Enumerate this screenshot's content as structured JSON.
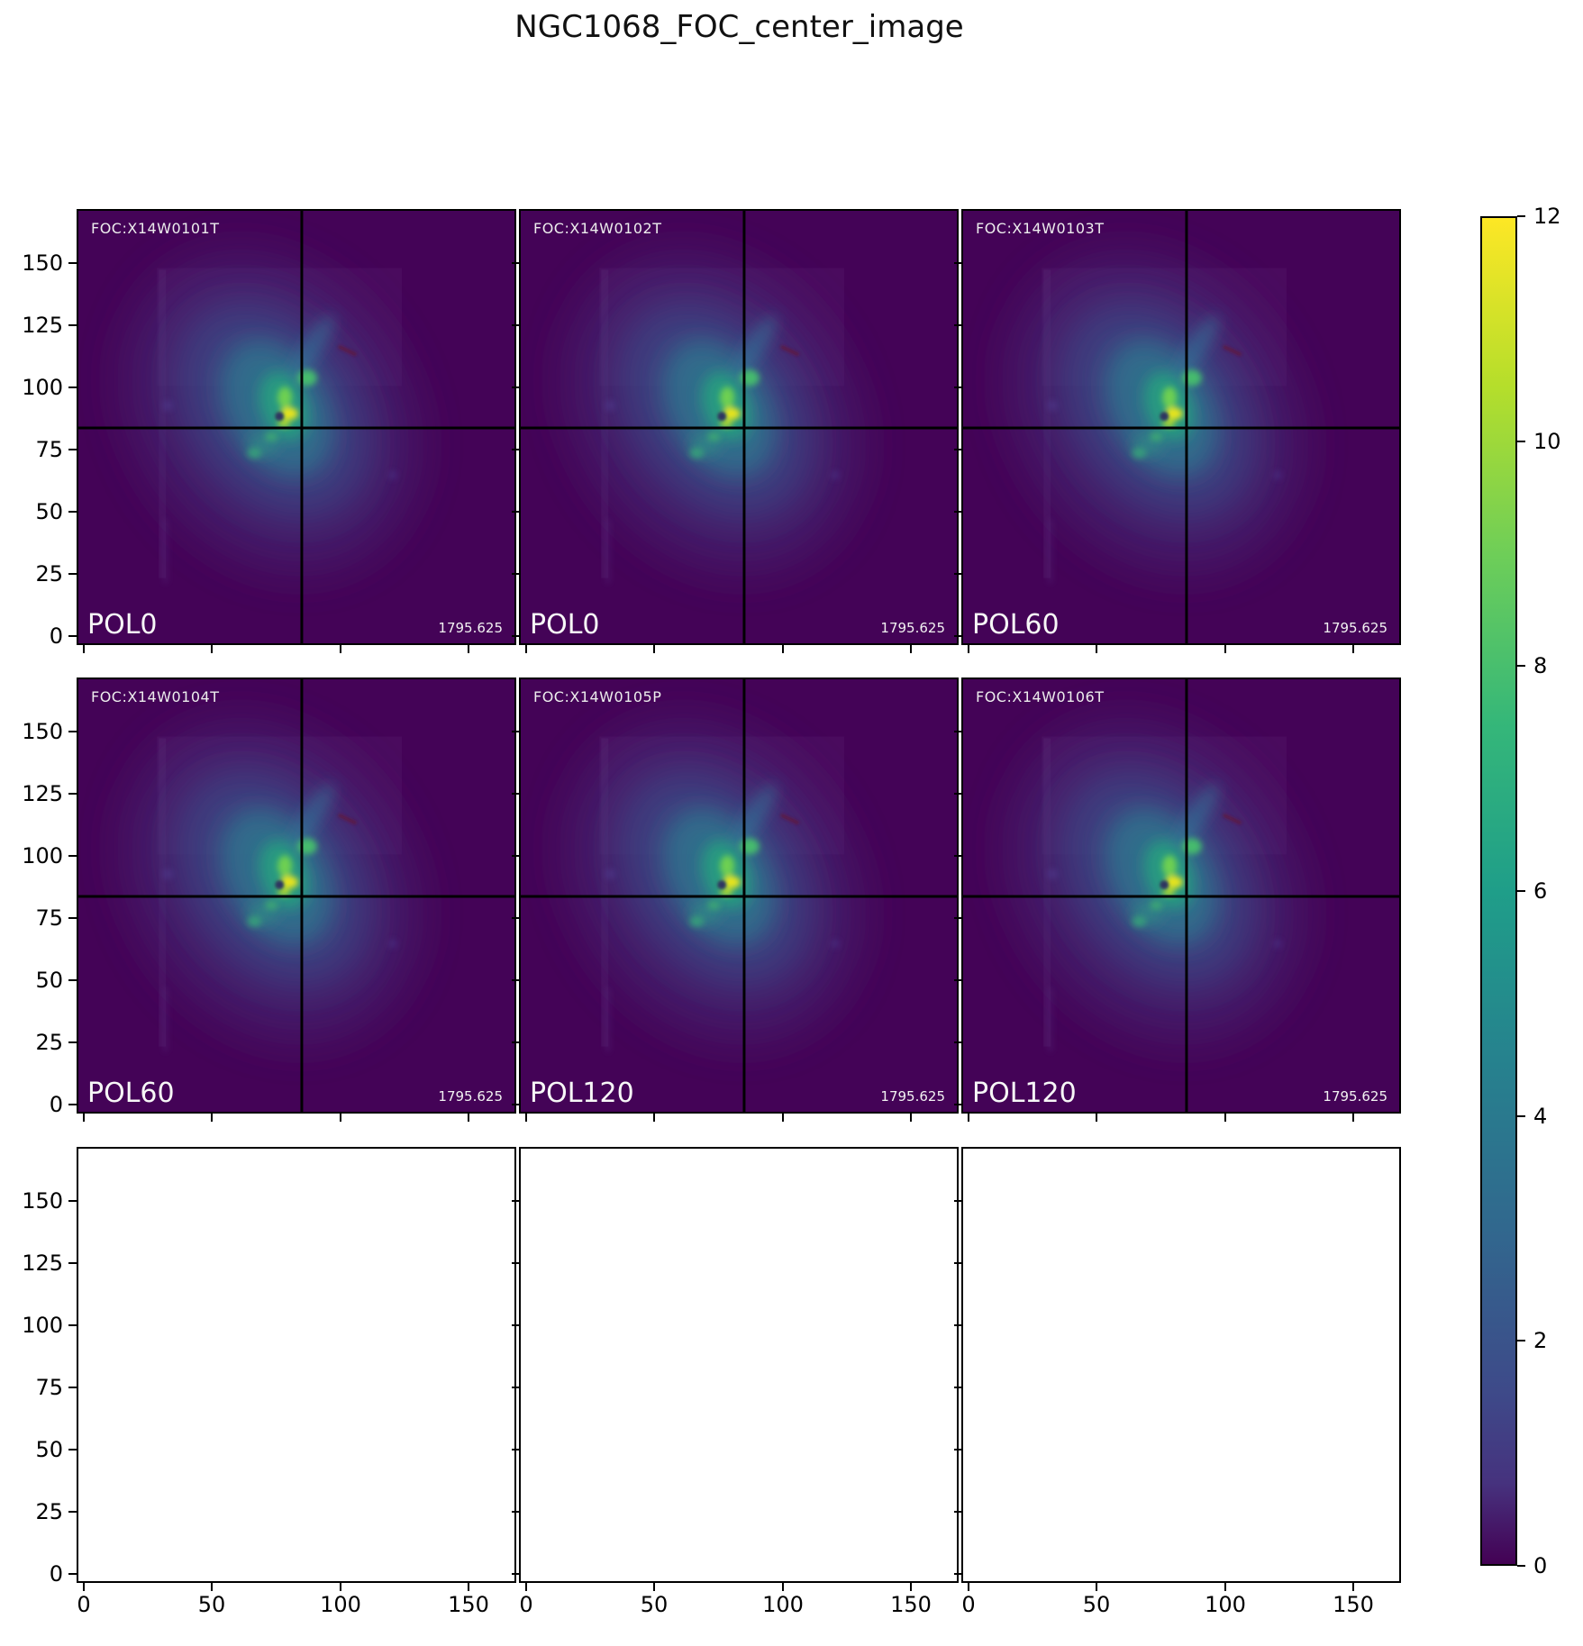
{
  "title": "NGC1068_FOC_center_image",
  "panels": [
    {
      "foc_label": "FOC:X14W0101T",
      "pol_label": "POL0",
      "exposure": "1795.625",
      "empty": false
    },
    {
      "foc_label": "FOC:X14W0102T",
      "pol_label": "POL0",
      "exposure": "1795.625",
      "empty": false
    },
    {
      "foc_label": "FOC:X14W0103T",
      "pol_label": "POL60",
      "exposure": "1795.625",
      "empty": false
    },
    {
      "foc_label": "FOC:X14W0104T",
      "pol_label": "POL60",
      "exposure": "1795.625",
      "empty": false
    },
    {
      "foc_label": "FOC:X14W0105P",
      "pol_label": "POL120",
      "exposure": "1795.625",
      "empty": false
    },
    {
      "foc_label": "FOC:X14W0106T",
      "pol_label": "POL120",
      "exposure": "1795.625",
      "empty": false
    },
    {
      "empty": true
    },
    {
      "empty": true
    },
    {
      "empty": true
    }
  ],
  "axes": {
    "y_tick_labels": [
      "150",
      "125",
      "100",
      "75",
      "50",
      "25",
      "0"
    ],
    "x_tick_labels": [
      "0",
      "50",
      "100",
      "150"
    ]
  },
  "colorbar": {
    "tick_labels": [
      "12",
      "10",
      "8",
      "6",
      "4",
      "2",
      "0"
    ],
    "colormap": "viridis",
    "top_color": "#fde725",
    "bottom_color": "#440154"
  },
  "chart_data": {
    "type": "heatmap",
    "title": "NGC1068_FOC_center_image",
    "layout": "3x3 grid of image subplots; top two rows show NGC1068 FOC center images, bottom row panels are empty",
    "colormap": "viridis",
    "colorbar_range": [
      0,
      12
    ],
    "colorbar_ticks": [
      0,
      2,
      4,
      6,
      8,
      10,
      12
    ],
    "x_ticks": [
      0,
      50,
      100,
      150
    ],
    "y_ticks": [
      0,
      25,
      50,
      75,
      100,
      125,
      150
    ],
    "panels": [
      {
        "row": 0,
        "col": 0,
        "dataset": "FOC:X14W0101T",
        "polarizer": "POL0",
        "exposure": 1795.625,
        "crosshair_xy": [
          88,
          84
        ]
      },
      {
        "row": 0,
        "col": 1,
        "dataset": "FOC:X14W0102T",
        "polarizer": "POL0",
        "exposure": 1795.625,
        "crosshair_xy": [
          88,
          84
        ]
      },
      {
        "row": 0,
        "col": 2,
        "dataset": "FOC:X14W0103T",
        "polarizer": "POL60",
        "exposure": 1795.625,
        "crosshair_xy": [
          88,
          84
        ]
      },
      {
        "row": 1,
        "col": 0,
        "dataset": "FOC:X14W0104T",
        "polarizer": "POL60",
        "exposure": 1795.625,
        "crosshair_xy": [
          88,
          84
        ]
      },
      {
        "row": 1,
        "col": 1,
        "dataset": "FOC:X14W0105P",
        "polarizer": "POL120",
        "exposure": 1795.625,
        "crosshair_xy": [
          88,
          84
        ]
      },
      {
        "row": 1,
        "col": 2,
        "dataset": "FOC:X14W0106T",
        "polarizer": "POL120",
        "exposure": 1795.625,
        "crosshair_xy": [
          88,
          84
        ]
      },
      {
        "row": 2,
        "col": 0,
        "empty": true
      },
      {
        "row": 2,
        "col": 1,
        "empty": true
      },
      {
        "row": 2,
        "col": 2,
        "empty": true
      }
    ]
  }
}
